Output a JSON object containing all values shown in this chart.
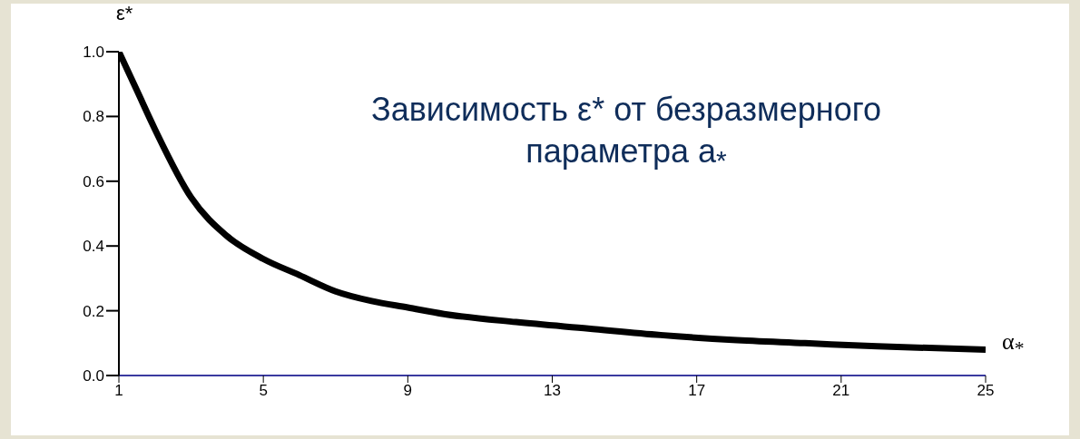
{
  "chart_data": {
    "type": "line",
    "title": "Зависимость ε* от безразмерного параметра a$_{*}$",
    "xlabel": "α$_{*}$",
    "ylabel": "ε*",
    "x": [
      1,
      1.5,
      2,
      3,
      4,
      5,
      6,
      7,
      8,
      9,
      10,
      12,
      14,
      16,
      18,
      20,
      22,
      25
    ],
    "series": [
      {
        "color": "#000000",
        "values": [
          1.0,
          0.88,
          0.76,
          0.55,
          0.43,
          0.36,
          0.31,
          0.26,
          0.23,
          0.21,
          0.19,
          0.165,
          0.145,
          0.125,
          0.11,
          0.1,
          0.09,
          0.08
        ]
      }
    ],
    "xlim": [
      1,
      25
    ],
    "xticks": [
      1,
      5,
      9,
      13,
      17,
      21,
      25
    ],
    "ylim": [
      0,
      1
    ],
    "yticks": [
      {
        "value": 0,
        "label": "0.0"
      },
      {
        "value": 0.2,
        "label": "0.2"
      },
      {
        "value": 0.4,
        "label": "0.4"
      },
      {
        "value": 0.6,
        "label": "0.6"
      },
      {
        "value": 0.8,
        "label": "0.8"
      },
      {
        "value": 1,
        "label": "1.0"
      }
    ],
    "marker": "none",
    "line_style": "solid",
    "legend": false,
    "grid": false
  }
}
